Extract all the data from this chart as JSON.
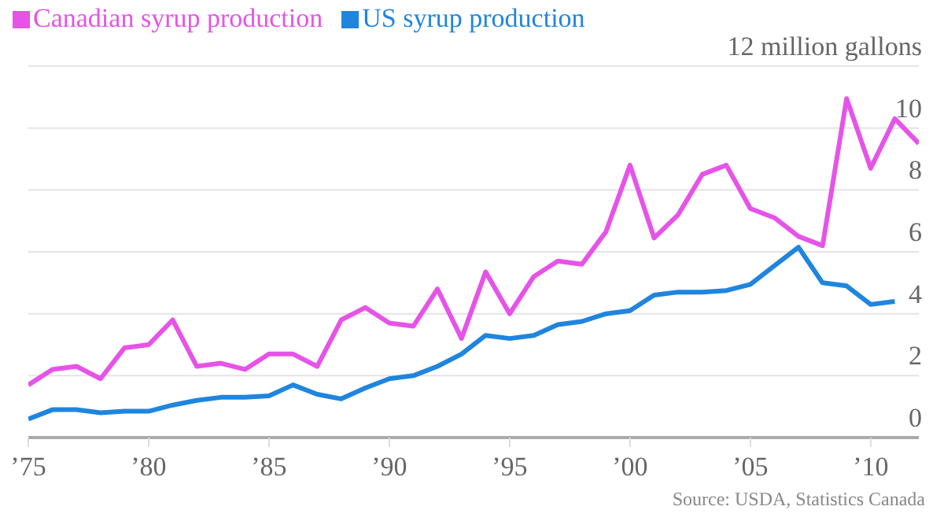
{
  "chart_data": {
    "type": "line",
    "annotations": [
      "Source: USDA, Statistics Canada"
    ],
    "x": [
      1975,
      1976,
      1977,
      1978,
      1979,
      1980,
      1981,
      1982,
      1983,
      1984,
      1985,
      1986,
      1987,
      1988,
      1989,
      1990,
      1991,
      1992,
      1993,
      1994,
      1995,
      1996,
      1997,
      1998,
      1999,
      2000,
      2001,
      2002,
      2003,
      2004,
      2005,
      2006,
      2007,
      2008,
      2009,
      2010,
      2011,
      2012
    ],
    "series": [
      {
        "name": "Canadian syrup production",
        "color": "#e653e8",
        "values": [
          1.7,
          2.2,
          2.3,
          1.9,
          2.9,
          3.0,
          3.8,
          2.3,
          2.4,
          2.2,
          2.7,
          2.7,
          2.3,
          3.8,
          4.2,
          3.7,
          3.6,
          4.8,
          3.2,
          5.35,
          4.0,
          5.2,
          5.7,
          5.6,
          6.65,
          8.8,
          6.45,
          7.2,
          8.5,
          8.8,
          7.4,
          7.1,
          6.5,
          6.2,
          10.95,
          8.7,
          10.3,
          9.5
        ]
      },
      {
        "name": "US syrup production",
        "color": "#1f85de",
        "values": [
          0.6,
          0.9,
          0.9,
          0.8,
          0.85,
          0.85,
          1.05,
          1.2,
          1.3,
          1.3,
          1.35,
          1.7,
          1.4,
          1.25,
          1.6,
          1.9,
          2.0,
          2.3,
          2.7,
          3.3,
          3.2,
          3.3,
          3.65,
          3.75,
          4.0,
          4.1,
          4.6,
          4.7,
          4.7,
          4.75,
          4.95,
          5.55,
          6.15,
          5.0,
          4.9,
          4.3,
          4.4,
          null
        ]
      }
    ],
    "xlim": [
      1975,
      2012
    ],
    "xticks": [
      {
        "value": 1975,
        "label": "’75"
      },
      {
        "value": 1980,
        "label": "’80"
      },
      {
        "value": 1985,
        "label": "’85"
      },
      {
        "value": 1990,
        "label": "’90"
      },
      {
        "value": 1995,
        "label": "’95"
      },
      {
        "value": 2000,
        "label": "’00"
      },
      {
        "value": 2005,
        "label": "’05"
      },
      {
        "value": 2010,
        "label": "’10"
      }
    ],
    "ylim": [
      0,
      12
    ],
    "yticks": [
      0,
      2,
      4,
      6,
      8,
      10,
      {
        "value": 12,
        "label": "12 million gallons"
      }
    ],
    "grid": "y",
    "legend": "top left",
    "marker": "none",
    "line_style": "solid"
  }
}
